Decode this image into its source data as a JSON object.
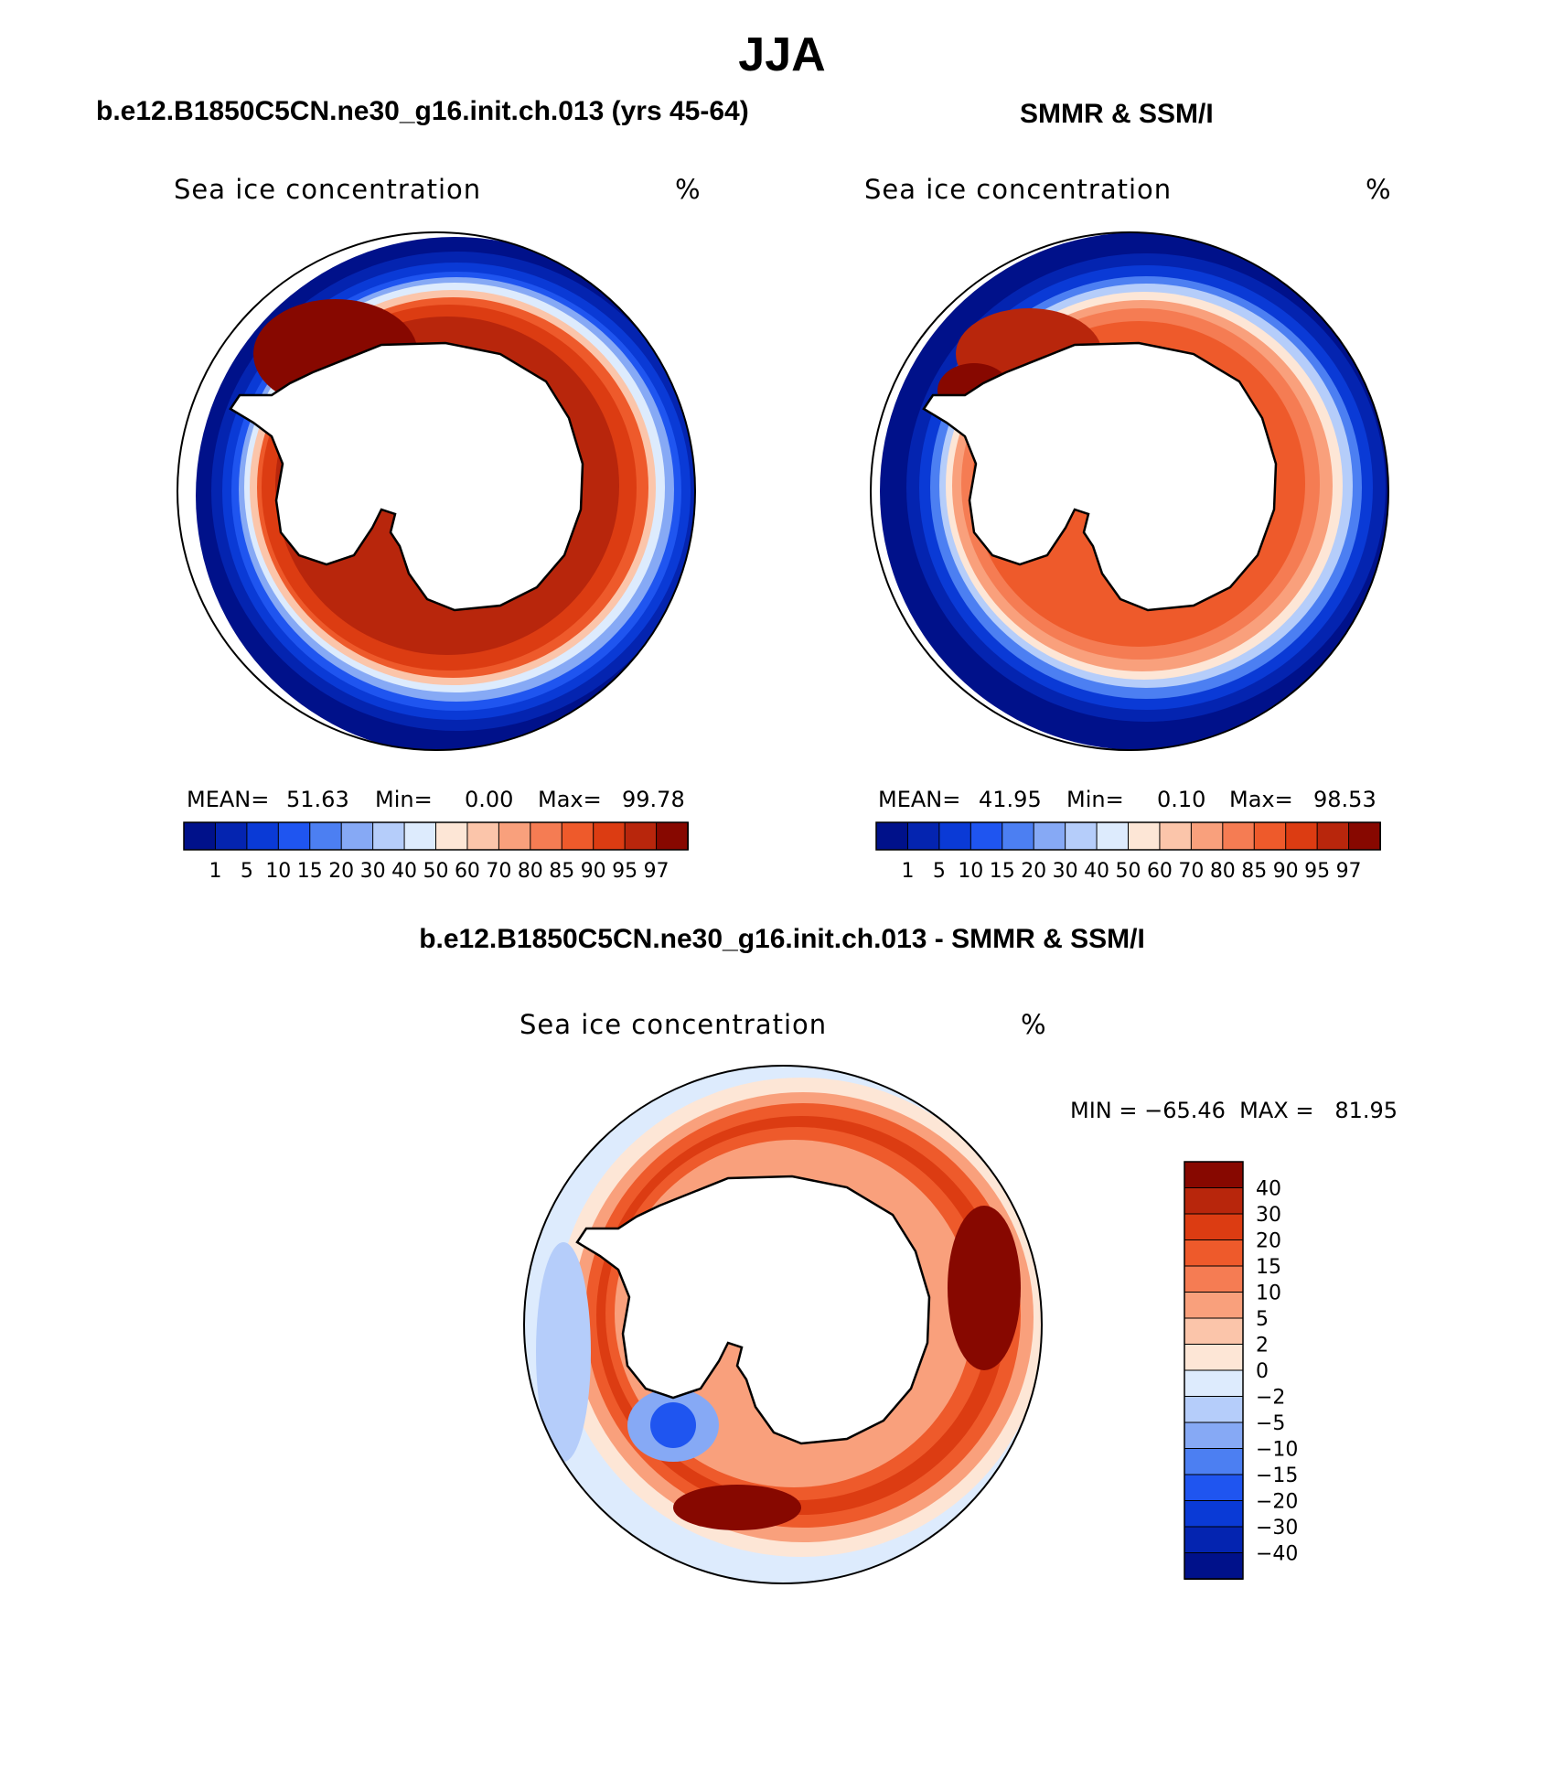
{
  "figure": {
    "title": "JJA",
    "left_panel_title": "b.e12.B1850C5CN.ne30_g16.init.ch.013 (yrs 45-64)",
    "right_panel_title": "SMMR & SSM/I",
    "bottom_panel_title": "b.e12.B1850C5CN.ne30_g16.init.ch.013 - SMMR & SSM/I"
  },
  "panels": {
    "left": {
      "variable": "Sea ice concentration",
      "unit": "%",
      "mean_label": "MEAN=",
      "mean": "51.63",
      "min_label": "Min=",
      "min": "0.00",
      "max_label": "Max=",
      "max": "99.78"
    },
    "right": {
      "variable": "Sea ice concentration",
      "unit": "%",
      "mean_label": "MEAN=",
      "mean": "41.95",
      "min_label": "Min=",
      "min": "0.10",
      "max_label": "Max=",
      "max": "98.53"
    },
    "bottom": {
      "variable": "Sea ice concentration",
      "unit": "%",
      "minmax_text": "MIN = −65.46  MAX =   81.95"
    }
  },
  "chart_data": [
    {
      "type": "heatmap",
      "title": "b.e12.B1850C5CN.ne30_g16.init.ch.013 (yrs 45-64)",
      "subtitle": "Sea ice concentration (%)",
      "projection": "south polar stereographic",
      "stats": {
        "mean": 51.63,
        "min": 0.0,
        "max": 99.78
      },
      "colorbar_levels": [
        1,
        5,
        10,
        15,
        20,
        30,
        40,
        50,
        60,
        70,
        80,
        85,
        90,
        95,
        97
      ],
      "colorbar_tick_labels": [
        "1",
        "5",
        "10",
        "15",
        "20",
        "30",
        "40",
        "50",
        "60",
        "70",
        "80",
        "85",
        "90",
        "95",
        "97"
      ],
      "colorbar_colors": [
        "#00118a",
        "#0424b0",
        "#0a3ad6",
        "#1f55f0",
        "#4c7ff2",
        "#86a9f5",
        "#b5cdfa",
        "#ddebfd",
        "#fde6d6",
        "#fbc5aa",
        "#f9a07c",
        "#f57c53",
        "#ee5a2b",
        "#dc3c12",
        "#b8260c",
        "#870800"
      ]
    },
    {
      "type": "heatmap",
      "title": "SMMR & SSM/I",
      "subtitle": "Sea ice concentration (%)",
      "projection": "south polar stereographic",
      "stats": {
        "mean": 41.95,
        "min": 0.1,
        "max": 98.53
      },
      "colorbar_levels": [
        1,
        5,
        10,
        15,
        20,
        30,
        40,
        50,
        60,
        70,
        80,
        85,
        90,
        95,
        97
      ],
      "colorbar_tick_labels": [
        "1",
        "5",
        "10",
        "15",
        "20",
        "30",
        "40",
        "50",
        "60",
        "70",
        "80",
        "85",
        "90",
        "95",
        "97"
      ],
      "colorbar_colors": [
        "#00118a",
        "#0424b0",
        "#0a3ad6",
        "#1f55f0",
        "#4c7ff2",
        "#86a9f5",
        "#b5cdfa",
        "#ddebfd",
        "#fde6d6",
        "#fbc5aa",
        "#f9a07c",
        "#f57c53",
        "#ee5a2b",
        "#dc3c12",
        "#b8260c",
        "#870800"
      ]
    },
    {
      "type": "heatmap",
      "title": "b.e12.B1850C5CN.ne30_g16.init.ch.013 - SMMR & SSM/I",
      "subtitle": "Sea ice concentration (%)",
      "projection": "south polar stereographic",
      "stats": {
        "min": -65.46,
        "max": 81.95
      },
      "colorbar_levels": [
        40,
        30,
        20,
        15,
        10,
        5,
        2,
        0,
        -2,
        -5,
        -10,
        -15,
        -20,
        -30,
        -40
      ],
      "colorbar_tick_labels": [
        "40",
        "30",
        "20",
        "15",
        "10",
        "5",
        "2",
        "0",
        "−2",
        "−5",
        "−10",
        "−15",
        "−20",
        "−30",
        "−40"
      ],
      "colorbar_colors": [
        "#870800",
        "#b8260c",
        "#dc3c12",
        "#ee5a2b",
        "#f57c53",
        "#f9a07c",
        "#fbc5aa",
        "#fde6d6",
        "#ddebfd",
        "#b5cdfa",
        "#86a9f5",
        "#4c7ff2",
        "#1f55f0",
        "#0a3ad6",
        "#0424b0",
        "#00118a"
      ]
    }
  ]
}
